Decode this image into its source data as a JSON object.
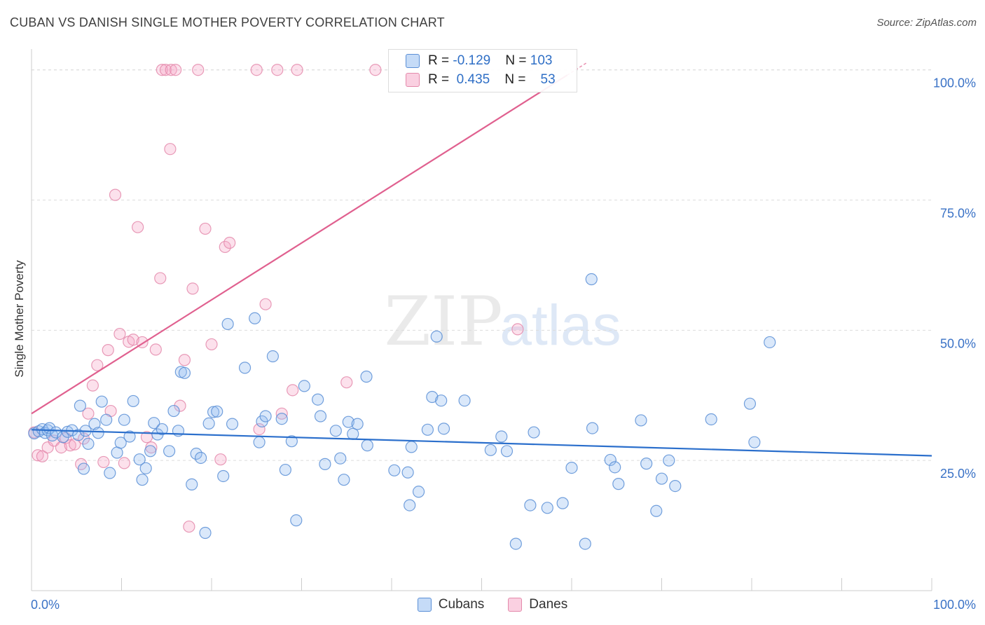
{
  "title": "CUBAN VS DANISH SINGLE MOTHER POVERTY CORRELATION CHART",
  "source": "Source: ZipAtlas.com",
  "watermark": {
    "zip": "ZIP",
    "atlas": "atlas"
  },
  "colors": {
    "cubans_fill": "rgba(150,190,240,0.35)",
    "cubans_stroke": "#5b8fd6",
    "cubans_line": "#2b6fcc",
    "danes_fill": "rgba(245,170,200,0.35)",
    "danes_stroke": "#e48aab",
    "danes_line": "#e0608f",
    "axis_label": "#3a72c6"
  },
  "stats": [
    {
      "r_label": "R = ",
      "r_value": "-0.129",
      "n_label": "N = ",
      "n_value": "103"
    },
    {
      "r_label": "R = ",
      "r_value": "0.435",
      "n_label": "N = ",
      "n_value": "53"
    }
  ],
  "chart_data": {
    "type": "scatter",
    "title": "CUBAN VS DANISH SINGLE MOTHER POVERTY CORRELATION CHART",
    "xlabel": "",
    "ylabel": "Single Mother Poverty",
    "xlim": [
      0,
      100
    ],
    "ylim": [
      0,
      104
    ],
    "x_tick_labels": [
      "0.0%",
      "100.0%"
    ],
    "y_ticks": [
      25,
      50,
      75,
      100
    ],
    "y_tick_labels": [
      "25.0%",
      "50.0%",
      "75.0%",
      "100.0%"
    ],
    "grid": true,
    "legend": [
      "Cubans",
      "Danes"
    ],
    "series": [
      {
        "name": "Cubans",
        "trend": {
          "x": [
            0,
            100
          ],
          "y": [
            30.9,
            25.9
          ]
        },
        "points": [
          [
            0.3,
            30.2
          ],
          [
            0.8,
            30.6
          ],
          [
            1.2,
            31.0
          ],
          [
            1.5,
            30.3
          ],
          [
            1.8,
            30.8
          ],
          [
            2.0,
            31.2
          ],
          [
            2.3,
            29.8
          ],
          [
            2.7,
            30.4
          ],
          [
            3.5,
            29.5
          ],
          [
            4.0,
            30.5
          ],
          [
            4.5,
            30.8
          ],
          [
            5.2,
            29.9
          ],
          [
            6.0,
            30.7
          ],
          [
            5.4,
            35.5
          ],
          [
            5.8,
            23.4
          ],
          [
            6.3,
            28.2
          ],
          [
            7.0,
            32.0
          ],
          [
            7.4,
            30.3
          ],
          [
            7.8,
            36.3
          ],
          [
            8.3,
            32.8
          ],
          [
            8.7,
            22.6
          ],
          [
            9.5,
            26.5
          ],
          [
            9.9,
            28.4
          ],
          [
            10.3,
            32.8
          ],
          [
            10.9,
            29.6
          ],
          [
            11.3,
            36.4
          ],
          [
            12.0,
            25.2
          ],
          [
            12.3,
            21.3
          ],
          [
            12.7,
            23.5
          ],
          [
            13.2,
            26.8
          ],
          [
            13.6,
            32.2
          ],
          [
            14.0,
            30.0
          ],
          [
            14.5,
            31.0
          ],
          [
            15.3,
            26.8
          ],
          [
            15.8,
            34.5
          ],
          [
            16.3,
            30.7
          ],
          [
            16.6,
            42.0
          ],
          [
            17.0,
            41.8
          ],
          [
            17.8,
            20.4
          ],
          [
            18.3,
            26.3
          ],
          [
            18.8,
            25.5
          ],
          [
            19.3,
            11.1
          ],
          [
            19.7,
            32.1
          ],
          [
            20.2,
            34.3
          ],
          [
            20.6,
            34.4
          ],
          [
            21.3,
            22.0
          ],
          [
            21.8,
            51.2
          ],
          [
            22.3,
            32.0
          ],
          [
            23.7,
            42.8
          ],
          [
            24.8,
            52.3
          ],
          [
            25.3,
            28.5
          ],
          [
            25.6,
            32.5
          ],
          [
            26.0,
            33.5
          ],
          [
            26.8,
            45.0
          ],
          [
            27.8,
            33.0
          ],
          [
            28.2,
            23.2
          ],
          [
            28.9,
            28.7
          ],
          [
            29.4,
            13.5
          ],
          [
            30.3,
            39.3
          ],
          [
            31.8,
            36.7
          ],
          [
            32.1,
            33.5
          ],
          [
            32.6,
            24.3
          ],
          [
            33.8,
            30.7
          ],
          [
            34.3,
            25.4
          ],
          [
            34.7,
            21.3
          ],
          [
            35.2,
            32.4
          ],
          [
            35.7,
            30.1
          ],
          [
            36.2,
            32.0
          ],
          [
            37.2,
            41.1
          ],
          [
            37.3,
            27.9
          ],
          [
            40.3,
            23.1
          ],
          [
            41.8,
            22.7
          ],
          [
            42.2,
            27.6
          ],
          [
            43.0,
            19.0
          ],
          [
            42.0,
            16.4
          ],
          [
            44.0,
            30.9
          ],
          [
            44.5,
            37.2
          ],
          [
            45.0,
            48.8
          ],
          [
            45.5,
            36.5
          ],
          [
            45.8,
            31.1
          ],
          [
            48.1,
            36.5
          ],
          [
            51.0,
            27.0
          ],
          [
            52.2,
            29.6
          ],
          [
            52.8,
            26.8
          ],
          [
            53.8,
            9.0
          ],
          [
            55.4,
            16.4
          ],
          [
            55.8,
            30.4
          ],
          [
            57.3,
            15.9
          ],
          [
            59.0,
            16.8
          ],
          [
            60.0,
            23.6
          ],
          [
            61.5,
            9.0
          ],
          [
            62.2,
            59.8
          ],
          [
            62.3,
            31.2
          ],
          [
            64.3,
            25.1
          ],
          [
            64.8,
            23.7
          ],
          [
            65.2,
            20.5
          ],
          [
            67.7,
            32.7
          ],
          [
            68.3,
            24.4
          ],
          [
            69.4,
            15.3
          ],
          [
            70.0,
            21.5
          ],
          [
            70.8,
            25.0
          ],
          [
            71.5,
            20.1
          ],
          [
            75.5,
            32.9
          ],
          [
            79.8,
            35.9
          ],
          [
            80.3,
            28.5
          ],
          [
            82.0,
            47.7
          ]
        ]
      },
      {
        "name": "Danes",
        "trend": {
          "x": [
            0,
            61.8
          ],
          "y": [
            34.0,
            101.5
          ]
        },
        "points": [
          [
            0.3,
            30.4
          ],
          [
            0.7,
            26.0
          ],
          [
            1.2,
            25.8
          ],
          [
            1.8,
            27.5
          ],
          [
            2.5,
            28.8
          ],
          [
            3.3,
            27.5
          ],
          [
            3.8,
            29.3
          ],
          [
            4.3,
            27.9
          ],
          [
            4.8,
            28.1
          ],
          [
            5.5,
            24.3
          ],
          [
            5.8,
            29.2
          ],
          [
            6.3,
            34.0
          ],
          [
            6.8,
            39.4
          ],
          [
            7.3,
            43.3
          ],
          [
            8.0,
            24.7
          ],
          [
            8.5,
            46.2
          ],
          [
            8.8,
            34.5
          ],
          [
            9.3,
            76.0
          ],
          [
            9.8,
            49.3
          ],
          [
            10.3,
            24.5
          ],
          [
            10.8,
            47.8
          ],
          [
            11.3,
            48.2
          ],
          [
            11.8,
            69.8
          ],
          [
            12.3,
            47.7
          ],
          [
            12.8,
            29.5
          ],
          [
            13.3,
            27.5
          ],
          [
            13.8,
            46.3
          ],
          [
            14.3,
            60.0
          ],
          [
            14.5,
            100.0
          ],
          [
            14.9,
            100.0
          ],
          [
            15.5,
            100.0
          ],
          [
            15.4,
            84.8
          ],
          [
            16.0,
            100.0
          ],
          [
            16.5,
            35.5
          ],
          [
            17.0,
            44.3
          ],
          [
            17.5,
            12.3
          ],
          [
            17.9,
            58.0
          ],
          [
            18.5,
            100.0
          ],
          [
            19.3,
            69.5
          ],
          [
            20.0,
            47.3
          ],
          [
            21.0,
            25.2
          ],
          [
            21.5,
            66.0
          ],
          [
            22.0,
            66.8
          ],
          [
            25.0,
            100.0
          ],
          [
            25.3,
            31.0
          ],
          [
            26.0,
            55.0
          ],
          [
            27.3,
            100.0
          ],
          [
            27.8,
            34.0
          ],
          [
            29.0,
            38.5
          ],
          [
            29.5,
            100.0
          ],
          [
            35.0,
            40.0
          ],
          [
            38.2,
            100.0
          ],
          [
            54.0,
            50.2
          ]
        ]
      }
    ]
  }
}
